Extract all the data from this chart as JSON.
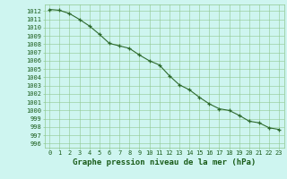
{
  "x": [
    0,
    1,
    2,
    3,
    4,
    5,
    6,
    7,
    8,
    9,
    10,
    11,
    12,
    13,
    14,
    15,
    16,
    17,
    18,
    19,
    20,
    21,
    22,
    23
  ],
  "y": [
    1012.2,
    1012.1,
    1011.7,
    1011.0,
    1010.2,
    1009.2,
    1008.1,
    1007.8,
    1007.5,
    1006.7,
    1006.0,
    1005.5,
    1004.2,
    1003.1,
    1002.5,
    1001.6,
    1000.8,
    1000.2,
    1000.0,
    999.4,
    998.7,
    998.5,
    997.9,
    997.7
  ],
  "line_color": "#2d6a2d",
  "marker_color": "#2d6a2d",
  "bg_color": "#cef5f0",
  "grid_color": "#90c890",
  "axis_label_color": "#1a5c1a",
  "tick_label_color": "#1a5c1a",
  "xlabel": "Graphe pression niveau de la mer (hPa)",
  "ylim_min": 995.5,
  "ylim_max": 1012.8,
  "xtick_labels": [
    "0",
    "1",
    "2",
    "3",
    "4",
    "5",
    "6",
    "7",
    "8",
    "9",
    "10",
    "11",
    "12",
    "13",
    "14",
    "15",
    "16",
    "17",
    "18",
    "19",
    "20",
    "21",
    "22",
    "23"
  ],
  "ytick_labels": [
    "996",
    "997",
    "998",
    "999",
    "1000",
    "1001",
    "1002",
    "1003",
    "1004",
    "1005",
    "1006",
    "1007",
    "1008",
    "1009",
    "1010",
    "1011",
    "1012"
  ],
  "linewidth": 0.8,
  "markersize": 3.0,
  "xlabel_fontsize": 6.5,
  "tick_fontsize": 5.0
}
